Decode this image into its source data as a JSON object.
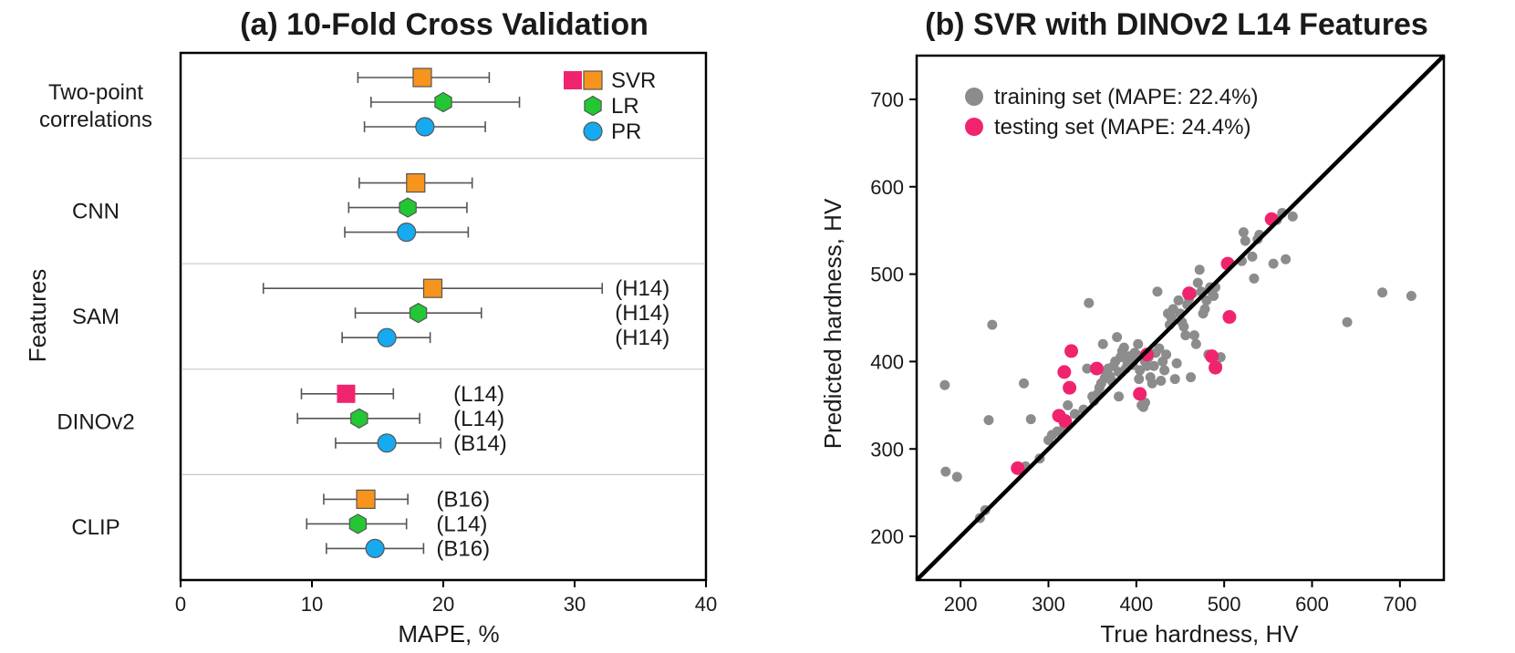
{
  "chart_data": [
    {
      "type": "errorbar",
      "title": "(a) 10-Fold Cross Validation",
      "xlabel": "MAPE, %",
      "ylabel": "Features",
      "xlim": [
        0,
        40
      ],
      "xticks": [
        "0",
        "10",
        "20",
        "30",
        "40"
      ],
      "grid": false,
      "legend_position": "top-right",
      "legend": [
        {
          "name": "SVR",
          "marker": "square"
        },
        {
          "name": "LR",
          "marker": "hexagon"
        },
        {
          "name": "PR",
          "marker": "circle"
        }
      ],
      "groups": [
        {
          "label": "Two-point\ncorrelations",
          "points": [
            {
              "model": "SVR",
              "value": 18.4,
              "lo": 13.5,
              "hi": 23.5,
              "note": ""
            },
            {
              "model": "LR",
              "value": 20.0,
              "lo": 14.5,
              "hi": 25.8,
              "note": ""
            },
            {
              "model": "PR",
              "value": 18.6,
              "lo": 14.0,
              "hi": 23.2,
              "note": ""
            }
          ]
        },
        {
          "label": "CNN",
          "points": [
            {
              "model": "SVR",
              "value": 17.9,
              "lo": 13.6,
              "hi": 22.2,
              "note": ""
            },
            {
              "model": "LR",
              "value": 17.3,
              "lo": 12.8,
              "hi": 21.8,
              "note": ""
            },
            {
              "model": "PR",
              "value": 17.2,
              "lo": 12.5,
              "hi": 21.9,
              "note": ""
            }
          ]
        },
        {
          "label": "SAM",
          "points": [
            {
              "model": "SVR",
              "value": 19.2,
              "lo": 6.3,
              "hi": 32.1,
              "note": "(H14)"
            },
            {
              "model": "LR",
              "value": 18.1,
              "lo": 13.3,
              "hi": 22.9,
              "note": "(H14)"
            },
            {
              "model": "PR",
              "value": 15.7,
              "lo": 12.3,
              "hi": 19.0,
              "note": "(H14)"
            }
          ]
        },
        {
          "label": "DINOv2",
          "points": [
            {
              "model": "SVR",
              "value": 12.6,
              "lo": 9.2,
              "hi": 16.2,
              "note": "(L14)",
              "highlight": true
            },
            {
              "model": "LR",
              "value": 13.6,
              "lo": 8.9,
              "hi": 18.2,
              "note": "(L14)"
            },
            {
              "model": "PR",
              "value": 15.7,
              "lo": 11.8,
              "hi": 19.8,
              "note": "(B14)"
            }
          ]
        },
        {
          "label": "CLIP",
          "points": [
            {
              "model": "SVR",
              "value": 14.1,
              "lo": 10.9,
              "hi": 17.3,
              "note": "(B16)"
            },
            {
              "model": "LR",
              "value": 13.5,
              "lo": 9.6,
              "hi": 17.2,
              "note": "(L14)"
            },
            {
              "model": "PR",
              "value": 14.8,
              "lo": 11.1,
              "hi": 18.5,
              "note": "(B16)"
            }
          ]
        }
      ]
    },
    {
      "type": "scatter",
      "title": "(b) SVR with DINOv2 L14 Features",
      "xlabel": "True hardness, HV",
      "ylabel": "Predicted hardness, HV",
      "xlim": [
        150,
        750
      ],
      "ylim": [
        150,
        750
      ],
      "xticks": [
        200,
        300,
        400,
        500,
        600,
        700
      ],
      "yticks": [
        200,
        300,
        400,
        500,
        600,
        700
      ],
      "grid": false,
      "legend_position": "top-left",
      "reference_line": "y = x",
      "series": [
        {
          "name": "training set (MAPE: 22.4%)",
          "color": "#8c8c8c",
          "points": [
            [
              182,
              373
            ],
            [
              183,
              274
            ],
            [
              196,
              268
            ],
            [
              222,
              221
            ],
            [
              228,
              230
            ],
            [
              232,
              333
            ],
            [
              236,
              442
            ],
            [
              272,
              375
            ],
            [
              274,
              280
            ],
            [
              280,
              334
            ],
            [
              290,
              289
            ],
            [
              300,
              310
            ],
            [
              304,
              316
            ],
            [
              310,
              320
            ],
            [
              318,
              325
            ],
            [
              322,
              350
            ],
            [
              330,
              340
            ],
            [
              340,
              345
            ],
            [
              344,
              392
            ],
            [
              346,
              467
            ],
            [
              350,
              360
            ],
            [
              352,
              355
            ],
            [
              356,
              363
            ],
            [
              358,
              370
            ],
            [
              360,
              375
            ],
            [
              362,
              420
            ],
            [
              364,
              381
            ],
            [
              366,
              386
            ],
            [
              368,
              392
            ],
            [
              370,
              383
            ],
            [
              372,
              378
            ],
            [
              374,
              395
            ],
            [
              376,
              400
            ],
            [
              378,
              428
            ],
            [
              380,
              388
            ],
            [
              380,
              360
            ],
            [
              382,
              405
            ],
            [
              384,
              412
            ],
            [
              386,
              416
            ],
            [
              388,
              392
            ],
            [
              390,
              398
            ],
            [
              392,
              406
            ],
            [
              394,
              400
            ],
            [
              396,
              396
            ],
            [
              398,
              410
            ],
            [
              400,
              408
            ],
            [
              402,
              420
            ],
            [
              403,
              380
            ],
            [
              404,
              390
            ],
            [
              406,
              350
            ],
            [
              408,
              348
            ],
            [
              410,
              353
            ],
            [
              410,
              400
            ],
            [
              412,
              395
            ],
            [
              414,
              405
            ],
            [
              416,
              382
            ],
            [
              418,
              375
            ],
            [
              420,
              395
            ],
            [
              422,
              410
            ],
            [
              424,
              480
            ],
            [
              426,
              415
            ],
            [
              428,
              378
            ],
            [
              430,
              400
            ],
            [
              432,
              390
            ],
            [
              434,
              408
            ],
            [
              436,
              455
            ],
            [
              438,
              442
            ],
            [
              440,
              450
            ],
            [
              442,
              460
            ],
            [
              444,
              380
            ],
            [
              446,
              398
            ],
            [
              448,
              470
            ],
            [
              450,
              455
            ],
            [
              452,
              445
            ],
            [
              454,
              440
            ],
            [
              456,
              430
            ],
            [
              458,
              465
            ],
            [
              460,
              472
            ],
            [
              462,
              382
            ],
            [
              464,
              478
            ],
            [
              466,
              430
            ],
            [
              468,
              420
            ],
            [
              470,
              490
            ],
            [
              472,
              505
            ],
            [
              474,
              480
            ],
            [
              476,
              455
            ],
            [
              478,
              460
            ],
            [
              480,
              470
            ],
            [
              482,
              408
            ],
            [
              484,
              485
            ],
            [
              486,
              480
            ],
            [
              488,
              475
            ],
            [
              490,
              485
            ],
            [
              492,
              395
            ],
            [
              496,
              405
            ],
            [
              520,
              515
            ],
            [
              522,
              548
            ],
            [
              524,
              538
            ],
            [
              532,
              520
            ],
            [
              534,
              495
            ],
            [
              538,
              540
            ],
            [
              540,
              545
            ],
            [
              556,
              512
            ],
            [
              560,
              562
            ],
            [
              566,
              570
            ],
            [
              570,
              517
            ],
            [
              578,
              566
            ],
            [
              640,
              445
            ],
            [
              680,
              479
            ],
            [
              713,
              475
            ]
          ]
        },
        {
          "name": "testing set (MAPE: 24.4%)",
          "color": "#f0246e",
          "points": [
            [
              265,
              278
            ],
            [
              312,
              338
            ],
            [
              318,
              388
            ],
            [
              319,
              332
            ],
            [
              324,
              370
            ],
            [
              326,
              412
            ],
            [
              355,
              392
            ],
            [
              404,
              363
            ],
            [
              412,
              408
            ],
            [
              460,
              478
            ],
            [
              486,
              406
            ],
            [
              490,
              393
            ],
            [
              504,
              512
            ],
            [
              506,
              451
            ],
            [
              554,
              563
            ]
          ]
        }
      ]
    }
  ],
  "legend_colors": {
    "svr_default": "#f7941d",
    "svr_highlight": "#f0246e",
    "lr": "#23c734",
    "pr": "#16aaf0",
    "train": "#8c8c8c",
    "test": "#f0246e"
  }
}
